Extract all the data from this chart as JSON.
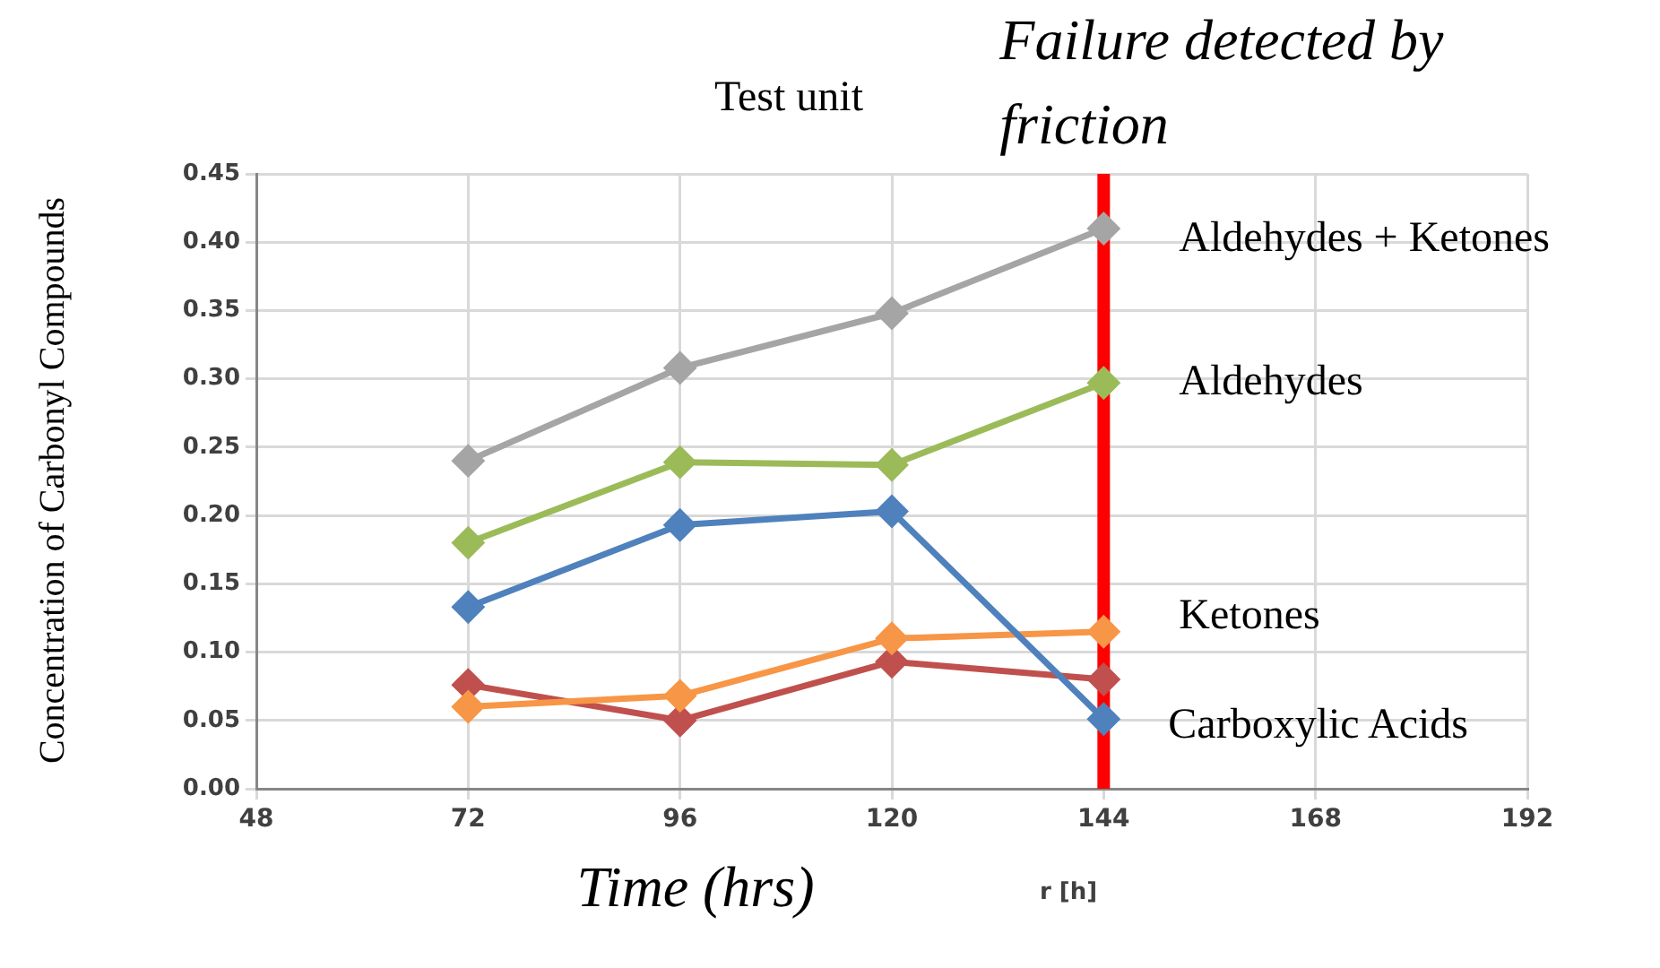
{
  "chart_data": {
    "type": "line",
    "x": [
      72,
      96,
      120,
      144
    ],
    "series": [
      {
        "name": "Aldehydes + Ketones",
        "color": "#a5a5a5",
        "values": [
          0.24,
          0.308,
          0.348,
          0.41
        ]
      },
      {
        "name": "Aldehydes",
        "color": "#9bbb59",
        "values": [
          0.18,
          0.239,
          0.237,
          0.297
        ]
      },
      {
        "name": "Carboxylic Acids",
        "color": "#4f81bd",
        "values": [
          0.133,
          0.193,
          0.203,
          0.051
        ]
      },
      {
        "name": "Ketones",
        "color": "#f79646",
        "values": [
          0.06,
          0.068,
          0.11,
          0.115
        ]
      },
      {
        "color": "#c0504d",
        "values": [
          0.076,
          0.05,
          0.093,
          0.08
        ]
      }
    ],
    "xlabel": "Time (hrs)",
    "ylabel": "Concentration of Carbonyl Compounds",
    "xlim": [
      48,
      192
    ],
    "xticks": [
      48,
      72,
      96,
      120,
      144,
      168,
      192
    ],
    "ylim": [
      0,
      0.45
    ],
    "yticks": [
      {
        "value": 0,
        "label": "0.00"
      },
      {
        "value": 0.05,
        "label": "0.05"
      },
      {
        "value": 0.1,
        "label": "0.10"
      },
      {
        "value": 0.15,
        "label": "0.15"
      },
      {
        "value": 0.2,
        "label": "0.20"
      },
      {
        "value": 0.25,
        "label": "0.25"
      },
      {
        "value": 0.3,
        "label": "0.30"
      },
      {
        "value": 0.35,
        "label": "0.35"
      },
      {
        "value": 0.4,
        "label": "0.40"
      },
      {
        "value": 0.45,
        "label": "0.45"
      }
    ],
    "ref_lines": [
      {
        "axis": "x",
        "value": 144,
        "label": "Failure detected by friction",
        "color": "#ff0000"
      }
    ],
    "annotations": [
      "Test unit",
      "r [h]"
    ],
    "grid": true,
    "legend": false,
    "marker": "diamond",
    "line_style": "solid"
  }
}
